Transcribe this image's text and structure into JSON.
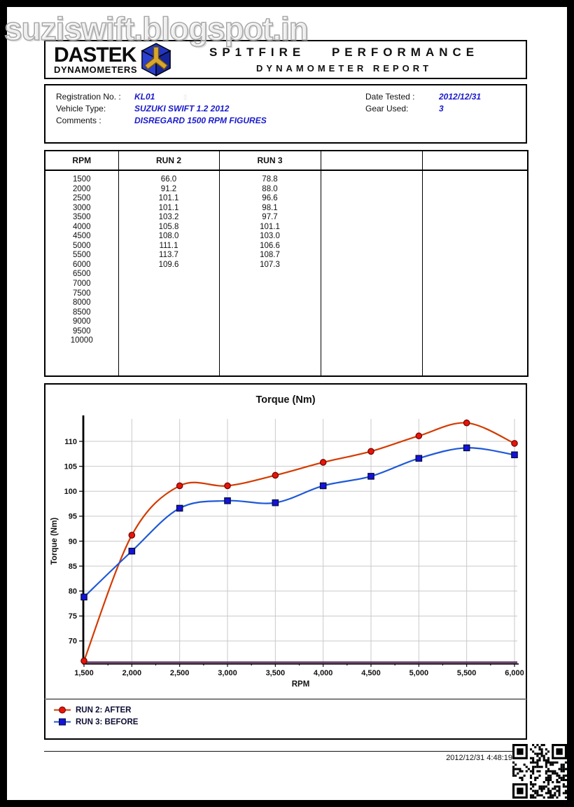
{
  "watermark": "suziswift.blogspot.in",
  "header": {
    "brand_name": "DASTEK",
    "brand_sub": "DYNAMOMETERS",
    "title_line1": "SP1TFIRE PERFORMANCE",
    "title_line2": "DYNAMOMETER REPORT"
  },
  "info": {
    "left_rows": [
      {
        "label": "Registration No. :",
        "value": "KL01"
      },
      {
        "label": "Vehicle Type:",
        "value": "SUZUKI SWIFT 1.2 2012"
      },
      {
        "label": "Comments :",
        "value": "DISREGARD 1500 RPM FIGURES"
      }
    ],
    "redacted_mark": ":",
    "right_rows": [
      {
        "label": "Date Tested :",
        "value": "2012/12/31"
      },
      {
        "label": "Gear Used:",
        "value": "3"
      }
    ],
    "value_color": "#1a1acc"
  },
  "table": {
    "headers": [
      "RPM",
      "RUN 2",
      "RUN 3",
      "",
      ""
    ],
    "rows": [
      [
        "1500",
        "66.0",
        "78.8",
        "",
        ""
      ],
      [
        "2000",
        "91.2",
        "88.0",
        "",
        ""
      ],
      [
        "2500",
        "101.1",
        "96.6",
        "",
        ""
      ],
      [
        "3000",
        "101.1",
        "98.1",
        "",
        ""
      ],
      [
        "3500",
        "103.2",
        "97.7",
        "",
        ""
      ],
      [
        "4000",
        "105.8",
        "101.1",
        "",
        ""
      ],
      [
        "4500",
        "108.0",
        "103.0",
        "",
        ""
      ],
      [
        "5000",
        "111.1",
        "106.6",
        "",
        ""
      ],
      [
        "5500",
        "113.7",
        "108.7",
        "",
        ""
      ],
      [
        "6000",
        "109.6",
        "107.3",
        "",
        ""
      ],
      [
        "6500",
        "",
        "",
        "",
        ""
      ],
      [
        "7000",
        "",
        "",
        "",
        ""
      ],
      [
        "7500",
        "",
        "",
        "",
        ""
      ],
      [
        "8000",
        "",
        "",
        "",
        ""
      ],
      [
        "8500",
        "",
        "",
        "",
        ""
      ],
      [
        "9000",
        "",
        "",
        "",
        ""
      ],
      [
        "9500",
        "",
        "",
        "",
        ""
      ],
      [
        "10000",
        "",
        "",
        "",
        ""
      ]
    ]
  },
  "chart_data": {
    "type": "line",
    "title": "Torque (Nm)",
    "xlabel": "RPM",
    "ylabel": "Torque (Nm)",
    "x": [
      1500,
      2000,
      2500,
      3000,
      3500,
      4000,
      4500,
      5000,
      5500,
      6000
    ],
    "xtick_labels": [
      "1,500",
      "2,000",
      "2,500",
      "3,000",
      "3,500",
      "4,000",
      "4,500",
      "5,000",
      "5,500",
      "6,000"
    ],
    "yticks": [
      70,
      75,
      80,
      85,
      90,
      95,
      100,
      105,
      110
    ],
    "ylim": [
      65.5,
      114.5
    ],
    "xlim": [
      1500,
      6000
    ],
    "grid": true,
    "legend_position": "bottom",
    "baseline_color": "#53275a",
    "series": [
      {
        "name": "RUN 2: AFTER",
        "line_color": "#d43b00",
        "marker": "circle",
        "marker_fill": "#e8140a",
        "marker_stroke": "#6b0500",
        "values": [
          66.0,
          91.2,
          101.1,
          101.1,
          103.2,
          105.8,
          108.0,
          111.1,
          113.7,
          109.6
        ]
      },
      {
        "name": "RUN 3: BEFORE",
        "line_color": "#1f58d8",
        "marker": "square",
        "marker_fill": "#1512dd",
        "marker_stroke": "#000d30",
        "values": [
          78.8,
          88.0,
          96.6,
          98.1,
          97.7,
          101.1,
          103.0,
          106.6,
          108.7,
          107.3
        ]
      }
    ]
  },
  "footer": {
    "timestamp": "2012/12/31 4:48:19"
  }
}
